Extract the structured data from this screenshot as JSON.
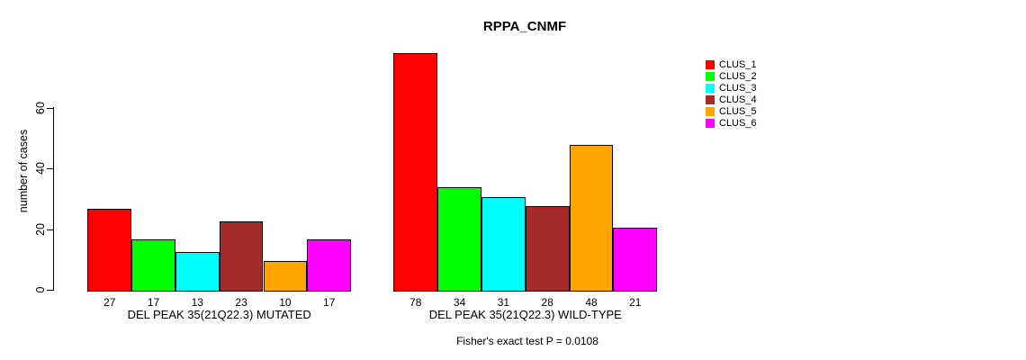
{
  "chart_data": {
    "type": "bar",
    "title": "RPPA_CNMF",
    "ylabel": "number of cases",
    "yticks": [
      0,
      20,
      40,
      60
    ],
    "ylim": [
      0,
      80
    ],
    "grid": false,
    "series_colors": [
      "#FF0000",
      "#00FF00",
      "#00FFFF",
      "#A52A2A",
      "#FFA500",
      "#FF00FF"
    ],
    "legend": {
      "position": "right",
      "entries": [
        "CLUS_1",
        "CLUS_2",
        "CLUS_3",
        "CLUS_4",
        "CLUS_5",
        "CLUS_6"
      ]
    },
    "groups": [
      {
        "label": "DEL PEAK 35(21Q22.3) MUTATED",
        "values": [
          27,
          17,
          13,
          23,
          10,
          17
        ]
      },
      {
        "label": "DEL PEAK 35(21Q22.3) WILD-TYPE",
        "values": [
          78,
          34,
          31,
          28,
          48,
          21
        ]
      }
    ],
    "annotation": "Fisher's exact test P = 0.0108"
  }
}
